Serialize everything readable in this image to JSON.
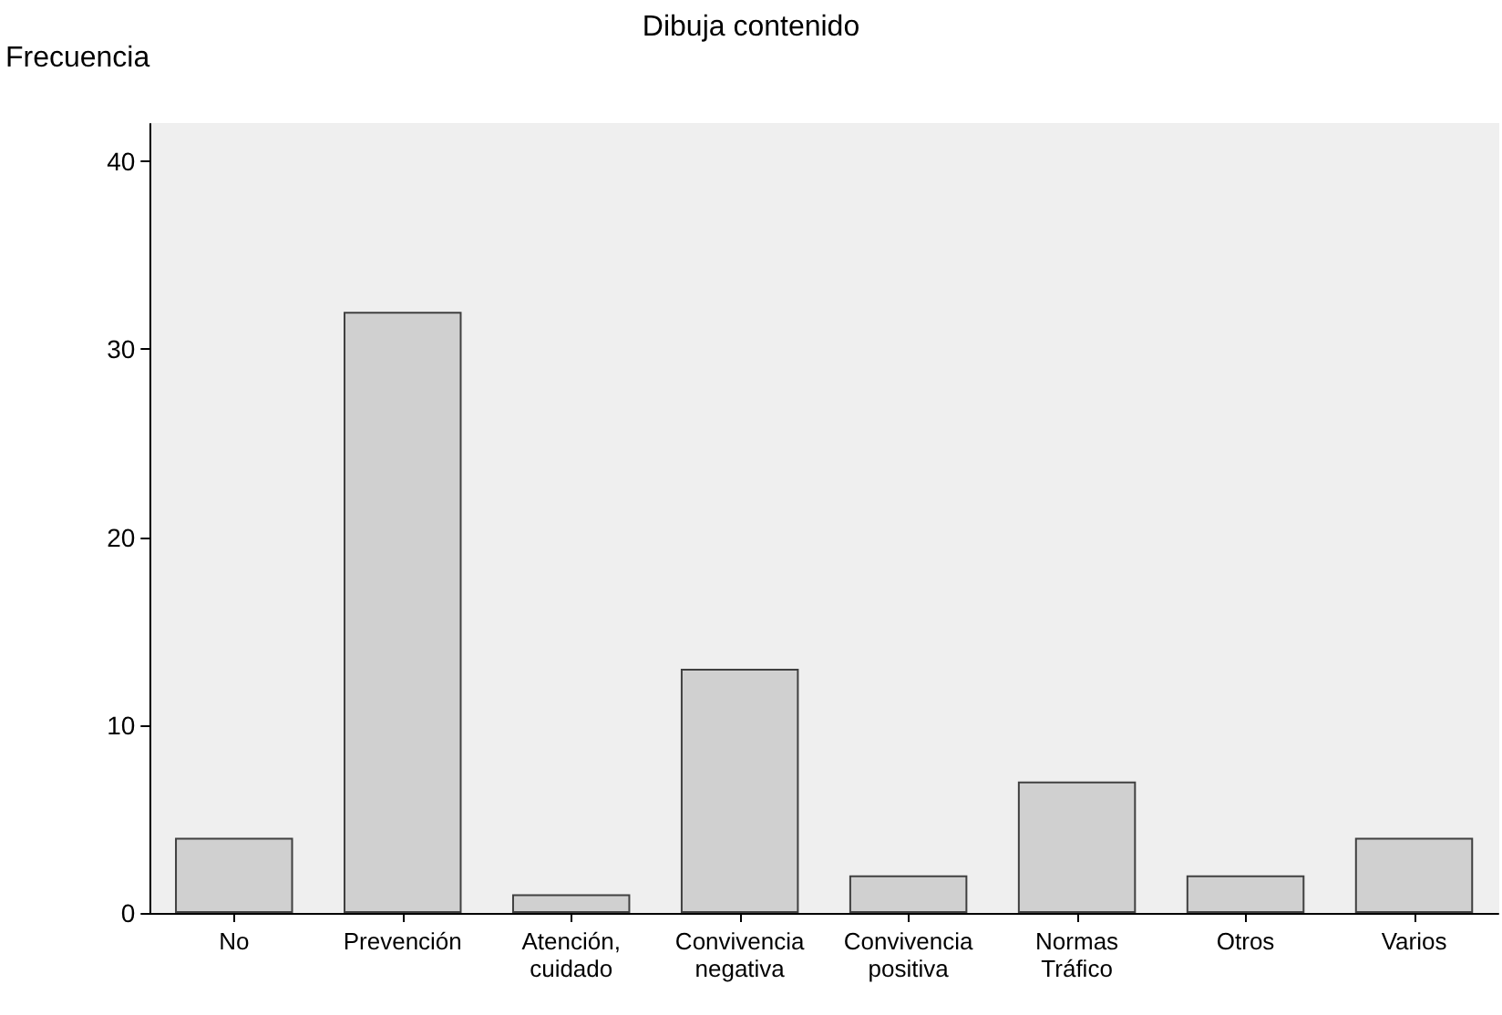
{
  "chart_data": {
    "type": "bar",
    "title": "Dibuja contenido",
    "ylabel": "Frecuencia",
    "categories": [
      "No",
      "Prevención",
      "Atención,\ncuidado",
      "Convivencia\nnegativa",
      "Convivencia\npositiva",
      "Normas\nTráfico",
      "Otros",
      "Varios"
    ],
    "values": [
      4,
      32,
      1,
      13,
      2,
      7,
      2,
      4
    ],
    "color": "#d0d0d0",
    "ylim": [
      0,
      42
    ],
    "yticks": [
      0,
      10,
      20,
      30,
      40
    ],
    "grid": false
  }
}
